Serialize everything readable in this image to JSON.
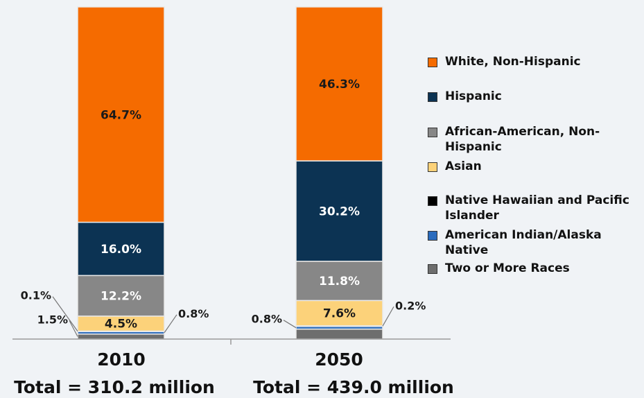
{
  "chart_data": {
    "type": "bar",
    "stacked": true,
    "normalized": true,
    "categories": [
      "2010",
      "2050"
    ],
    "totals": [
      "Total = 310.2 million",
      "Total = 439.0 million"
    ],
    "series": [
      {
        "name": "White, Non-Hispanic",
        "color": "#f56b00",
        "values": [
          64.7,
          46.3
        ],
        "labels": [
          "64.7%",
          "46.3%"
        ]
      },
      {
        "name": "Hispanic",
        "color": "#0c3353",
        "values": [
          16.0,
          30.2
        ],
        "labels": [
          "16.0%",
          "30.2%"
        ]
      },
      {
        "name": "African-American, Non-Hispanic",
        "color": "#878787",
        "values": [
          12.2,
          11.8
        ],
        "labels": [
          "12.2%",
          "11.8%"
        ]
      },
      {
        "name": "Asian",
        "color": "#fcd27a",
        "values": [
          4.5,
          7.6
        ],
        "labels": [
          "4.5%",
          "7.6%"
        ]
      },
      {
        "name": "Native Hawaiian and Pacific Islander",
        "color": "#000000",
        "values": [
          0.1,
          0.2
        ],
        "labels": [
          "0.1%",
          "0.2%"
        ]
      },
      {
        "name": "American Indian/Alaska Native",
        "color": "#2a6bbd",
        "values": [
          0.8,
          0.8
        ],
        "labels": [
          "0.8%",
          "0.8%"
        ]
      },
      {
        "name": "Two or More Races",
        "color": "#6e6e6e",
        "values": [
          1.5,
          3.0
        ],
        "labels": [
          "1.5%",
          "3.0%"
        ]
      }
    ],
    "legend_position": "right",
    "grid": false
  }
}
